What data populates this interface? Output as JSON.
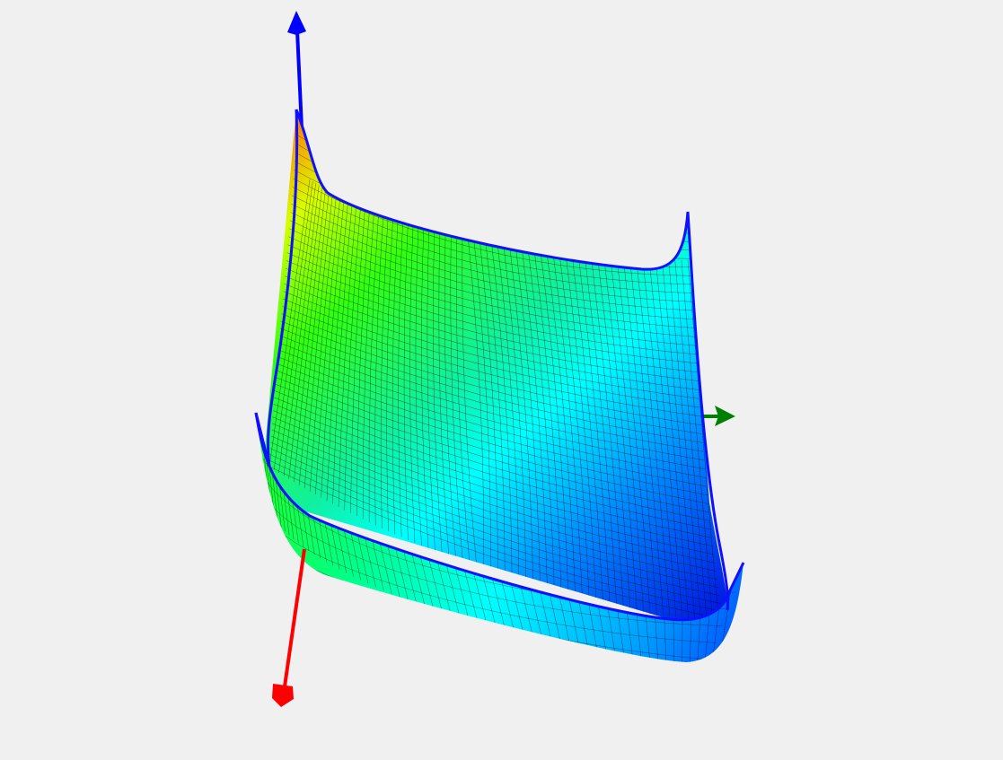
{
  "viewer": {
    "background_color": "#f0f0f0"
  },
  "surface": {
    "type": "3d-mesh",
    "colormap": [
      "#0000ff",
      "#0080ff",
      "#00ffff",
      "#00ff40",
      "#c0ff00",
      "#ff8000"
    ],
    "edge_color": "#1010ff",
    "wire_color": "#000000"
  },
  "axes": {
    "x_color": "#ff0000",
    "y_color": "#008000",
    "z_color": "#0000ff"
  }
}
